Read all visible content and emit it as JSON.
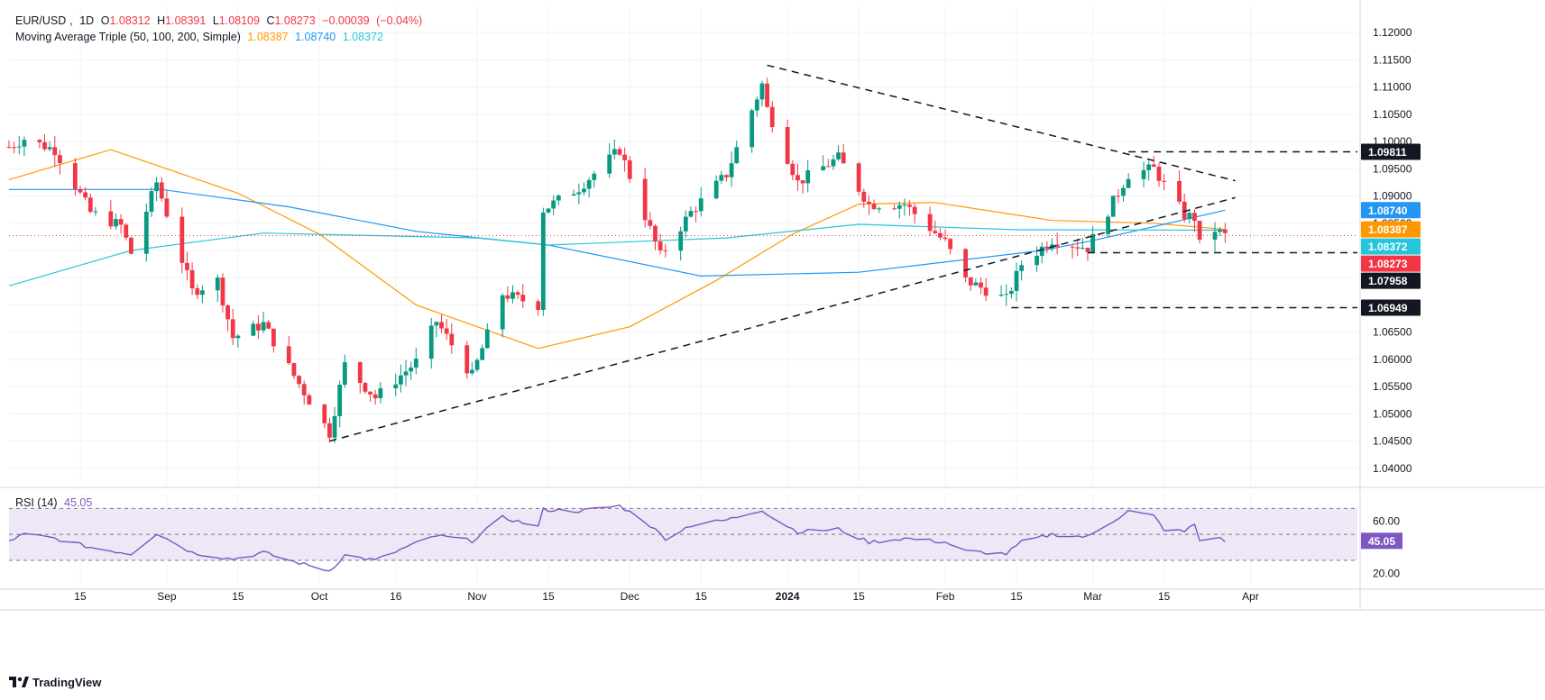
{
  "header": {
    "symbol": "EUR/USD",
    "timeframe": "1D",
    "open_label": "O",
    "open": "1.08312",
    "high_label": "H",
    "high": "1.08391",
    "low_label": "L",
    "low": "1.08109",
    "close_label": "C",
    "close": "1.08273",
    "change": "−0.00039",
    "change_pct": "(−0.04%)",
    "ma_title": "Moving Average Triple (50, 100, 200, Simple)",
    "ma50": "1.08387",
    "ma100": "1.08740",
    "ma200": "1.08372"
  },
  "rsi_header": {
    "title": "RSI (14)",
    "value": "45.05"
  },
  "branding": {
    "name": "TradingView"
  },
  "colors": {
    "up": "#089981",
    "down": "#f23645",
    "ma50": "#ff9800",
    "ma100": "#2196f3",
    "ma200": "#26c6da",
    "rsi": "#7e57c2",
    "rsi_band": "#ede7f6",
    "grid": "#f0f3fa",
    "axis_text": "#131722"
  },
  "chart_data": [
    {
      "type": "candlestick",
      "title": "EUR/USD, 1D",
      "ylim": [
        1.037,
        1.123
      ],
      "y_ticks": [
        "1.12000",
        "1.11500",
        "1.11000",
        "1.10500",
        "1.10000",
        "1.09500",
        "1.09000",
        "1.08500",
        "1.08000",
        "1.07500",
        "1.07000",
        "1.06500",
        "1.06000",
        "1.05500",
        "1.05000",
        "1.04500",
        "1.04000"
      ],
      "x_ticks": [
        {
          "label": "15",
          "date": "2023-08-15"
        },
        {
          "label": "Sep",
          "date": "2023-09-01"
        },
        {
          "label": "15",
          "date": "2023-09-15"
        },
        {
          "label": "Oct",
          "date": "2023-10-01"
        },
        {
          "label": "16",
          "date": "2023-10-16"
        },
        {
          "label": "Nov",
          "date": "2023-11-01"
        },
        {
          "label": "15",
          "date": "2023-11-15"
        },
        {
          "label": "Dec",
          "date": "2023-12-01"
        },
        {
          "label": "15",
          "date": "2023-12-15"
        },
        {
          "label": "2024",
          "date": "2024-01-01"
        },
        {
          "label": "15",
          "date": "2024-01-15"
        },
        {
          "label": "Feb",
          "date": "2024-02-01"
        },
        {
          "label": "15",
          "date": "2024-02-15"
        },
        {
          "label": "Mar",
          "date": "2024-03-01"
        },
        {
          "label": "15",
          "date": "2024-03-15"
        },
        {
          "label": "Apr",
          "date": "2024-04-01"
        }
      ],
      "date_start": "2023-08-01",
      "date_end": "2024-04-22",
      "key_points": [
        {
          "date": "2023-08-01",
          "close": 1.099
        },
        {
          "date": "2023-08-04",
          "close": 1.1005
        },
        {
          "date": "2023-08-10",
          "close": 1.0985
        },
        {
          "date": "2023-08-17",
          "close": 1.087
        },
        {
          "date": "2023-08-23",
          "close": 1.0845
        },
        {
          "date": "2023-08-25",
          "close": 1.0795
        },
        {
          "date": "2023-08-30",
          "close": 1.0925
        },
        {
          "date": "2023-09-06",
          "close": 1.0725
        },
        {
          "date": "2023-09-11",
          "close": 1.0745
        },
        {
          "date": "2023-09-14",
          "close": 1.064
        },
        {
          "date": "2023-09-20",
          "close": 1.0665
        },
        {
          "date": "2023-09-26",
          "close": 1.057
        },
        {
          "date": "2023-10-03",
          "close": 1.0465
        },
        {
          "date": "2023-10-06",
          "close": 1.059
        },
        {
          "date": "2023-10-12",
          "close": 1.053
        },
        {
          "date": "2023-10-20",
          "close": 1.0595
        },
        {
          "date": "2023-10-24",
          "close": 1.067
        },
        {
          "date": "2023-10-31",
          "close": 1.057
        },
        {
          "date": "2023-11-06",
          "close": 1.072
        },
        {
          "date": "2023-11-13",
          "close": 1.07
        },
        {
          "date": "2023-11-14",
          "close": 1.0875
        },
        {
          "date": "2023-11-21",
          "close": 1.0915
        },
        {
          "date": "2023-11-29",
          "close": 1.0985
        },
        {
          "date": "2023-12-07",
          "close": 1.079
        },
        {
          "date": "2023-12-13",
          "close": 1.087
        },
        {
          "date": "2023-12-20",
          "close": 1.094
        },
        {
          "date": "2023-12-27",
          "close": 1.1105
        },
        {
          "date": "2023-12-28",
          "close": 1.106
        },
        {
          "date": "2024-01-03",
          "close": 1.0925
        },
        {
          "date": "2024-01-11",
          "close": 1.097
        },
        {
          "date": "2024-01-17",
          "close": 1.0885
        },
        {
          "date": "2024-01-24",
          "close": 1.0885
        },
        {
          "date": "2024-02-01",
          "close": 1.0815
        },
        {
          "date": "2024-02-05",
          "close": 1.0745
        },
        {
          "date": "2024-02-13",
          "close": 1.071
        },
        {
          "date": "2024-02-16",
          "close": 1.0775
        },
        {
          "date": "2024-02-22",
          "close": 1.082
        },
        {
          "date": "2024-02-29",
          "close": 1.0805
        },
        {
          "date": "2024-03-08",
          "close": 1.094
        },
        {
          "date": "2024-03-13",
          "close": 1.095
        },
        {
          "date": "2024-03-19",
          "close": 1.0865
        },
        {
          "date": "2024-03-21",
          "close": 1.086
        },
        {
          "date": "2024-03-22",
          "close": 1.081
        },
        {
          "date": "2024-03-25",
          "close": 1.0838
        },
        {
          "date": "2024-03-27",
          "close": 1.08273
        }
      ],
      "series": [
        {
          "name": "SMA 50",
          "color": "#ff9800",
          "points": [
            [
              "2023-08-01",
              1.093
            ],
            [
              "2023-08-21",
              1.0985
            ],
            [
              "2023-09-15",
              1.0905
            ],
            [
              "2023-10-01",
              1.083
            ],
            [
              "2023-10-20",
              1.07
            ],
            [
              "2023-11-13",
              1.062
            ],
            [
              "2023-12-01",
              1.066
            ],
            [
              "2023-12-18",
              1.0745
            ],
            [
              "2024-01-02",
              1.083
            ],
            [
              "2024-01-15",
              1.0885
            ],
            [
              "2024-01-30",
              1.0888
            ],
            [
              "2024-02-22",
              1.0855
            ],
            [
              "2024-03-13",
              1.085
            ],
            [
              "2024-03-27",
              1.08387
            ]
          ]
        },
        {
          "name": "SMA 100",
          "color": "#2196f3",
          "points": [
            [
              "2023-08-01",
              1.0912
            ],
            [
              "2023-08-31",
              1.0912
            ],
            [
              "2023-09-25",
              1.088
            ],
            [
              "2023-10-20",
              1.0835
            ],
            [
              "2023-11-15",
              1.081
            ],
            [
              "2023-12-15",
              1.0753
            ],
            [
              "2024-01-15",
              1.076
            ],
            [
              "2024-02-20",
              1.08
            ],
            [
              "2024-03-01",
              1.0818
            ],
            [
              "2024-03-15",
              1.0848
            ],
            [
              "2024-03-27",
              1.0874
            ]
          ]
        },
        {
          "name": "SMA 200",
          "color": "#26c6da",
          "points": [
            [
              "2023-08-01",
              1.0735
            ],
            [
              "2023-08-25",
              1.08
            ],
            [
              "2023-09-20",
              1.0832
            ],
            [
              "2023-11-01",
              1.0823
            ],
            [
              "2023-11-15",
              1.081
            ],
            [
              "2023-12-20",
              1.0823
            ],
            [
              "2024-01-15",
              1.0848
            ],
            [
              "2024-02-15",
              1.0838
            ],
            [
              "2024-03-27",
              1.08372
            ]
          ]
        }
      ],
      "price_labels": [
        {
          "value": "1.09811",
          "kind": "level",
          "color": "#131722"
        },
        {
          "value": "1.08740",
          "kind": "sma100",
          "color": "#2196f3"
        },
        {
          "value": "1.08387",
          "kind": "sma50",
          "color": "#ff9800"
        },
        {
          "value": "1.08372",
          "kind": "sma200",
          "color": "#26c6da"
        },
        {
          "value": "1.08273",
          "kind": "last",
          "color": "#f23645"
        },
        {
          "value": "1.07958",
          "kind": "level",
          "color": "#131722"
        },
        {
          "value": "1.06949",
          "kind": "level",
          "color": "#131722"
        }
      ],
      "annotations": [
        {
          "type": "trendline",
          "from": [
            "2023-10-03",
            1.045
          ],
          "to": [
            "2024-03-29",
            1.0897
          ]
        },
        {
          "type": "trendline",
          "from": [
            "2023-12-28",
            1.114
          ],
          "to": [
            "2024-03-29",
            1.0928
          ]
        },
        {
          "type": "hline",
          "value": 1.09811,
          "from": "2024-03-08"
        },
        {
          "type": "hline",
          "value": 1.07958,
          "from": "2024-02-29"
        },
        {
          "type": "hline",
          "value": 1.06949,
          "from": "2024-02-14"
        }
      ]
    },
    {
      "type": "line",
      "title": "RSI (14)",
      "ylim": [
        12,
        82
      ],
      "y_ticks": [
        "60.00",
        "40.00",
        "20.00"
      ],
      "band": [
        30,
        70
      ],
      "midline": 50,
      "last_value": "45.05",
      "key_points": [
        [
          "2023-08-01",
          45
        ],
        [
          "2023-08-04",
          50
        ],
        [
          "2023-08-10",
          47
        ],
        [
          "2023-08-17",
          40
        ],
        [
          "2023-08-25",
          35
        ],
        [
          "2023-08-30",
          51
        ],
        [
          "2023-09-06",
          36
        ],
        [
          "2023-09-14",
          31
        ],
        [
          "2023-09-20",
          36
        ],
        [
          "2023-09-26",
          29
        ],
        [
          "2023-10-03",
          22
        ],
        [
          "2023-10-06",
          34
        ],
        [
          "2023-10-12",
          30
        ],
        [
          "2023-10-18",
          40
        ],
        [
          "2023-10-24",
          49
        ],
        [
          "2023-10-31",
          45
        ],
        [
          "2023-11-06",
          63
        ],
        [
          "2023-11-13",
          56
        ],
        [
          "2023-11-14",
          69
        ],
        [
          "2023-11-21",
          68
        ],
        [
          "2023-11-29",
          72
        ],
        [
          "2023-12-04",
          60
        ],
        [
          "2023-12-08",
          47
        ],
        [
          "2023-12-13",
          57
        ],
        [
          "2023-12-20",
          61
        ],
        [
          "2023-12-27",
          69
        ],
        [
          "2023-12-29",
          63
        ],
        [
          "2024-01-03",
          52
        ],
        [
          "2024-01-11",
          54
        ],
        [
          "2024-01-17",
          44
        ],
        [
          "2024-01-24",
          47
        ],
        [
          "2024-02-01",
          44
        ],
        [
          "2024-02-05",
          37
        ],
        [
          "2024-02-13",
          35
        ],
        [
          "2024-02-16",
          44
        ],
        [
          "2024-02-22",
          50
        ],
        [
          "2024-02-29",
          48
        ],
        [
          "2024-03-08",
          68
        ],
        [
          "2024-03-13",
          64
        ],
        [
          "2024-03-15",
          54
        ],
        [
          "2024-03-19",
          52
        ],
        [
          "2024-03-21",
          58
        ],
        [
          "2024-03-22",
          45
        ],
        [
          "2024-03-25",
          48
        ],
        [
          "2024-03-27",
          45.05
        ]
      ]
    }
  ]
}
